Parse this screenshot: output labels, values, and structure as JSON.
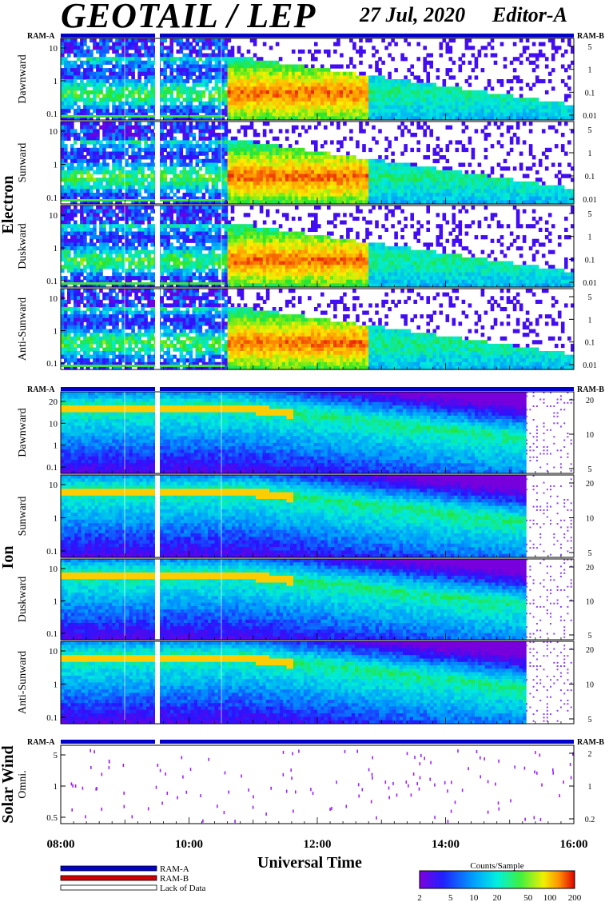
{
  "header": {
    "title": "GEOTAIL / LEP",
    "date": "27 Jul, 2020",
    "editor": "Editor-A"
  },
  "ram_labels": {
    "a": "RAM-A",
    "b": "RAM-B"
  },
  "group_labels": {
    "electron": "Electron",
    "ion": "Ion",
    "solar_wind": "Solar Wind"
  },
  "x_axis": {
    "title": "Universal Time",
    "ticks": [
      "08:00",
      "10:00",
      "12:00",
      "14:00",
      "16:00"
    ]
  },
  "legend": {
    "items": [
      {
        "label": "RAM-A",
        "color": "#0000c8"
      },
      {
        "label": "RAM-B",
        "color": "#d00000"
      },
      {
        "label": "Lack of Data",
        "color": "#ffffff"
      }
    ]
  },
  "colorbar": {
    "title": "Counts/Sample",
    "ticks": [
      "2",
      "5",
      "10",
      "20",
      "50",
      "100",
      "200"
    ]
  },
  "chart_data": {
    "type": "heatmap",
    "x_range": [
      "08:00",
      "16:00"
    ],
    "panels": [
      {
        "group": "Electron",
        "label": "Dawnward",
        "left_ticks": [
          "10",
          "1",
          "0.1"
        ],
        "right_ticks": [
          "5",
          "1",
          "0.1",
          "0.01"
        ]
      },
      {
        "group": "Electron",
        "label": "Sunward",
        "left_ticks": [
          "10",
          "1",
          "0.1"
        ],
        "right_ticks": [
          "5",
          "1",
          "0.1",
          "0.01"
        ]
      },
      {
        "group": "Electron",
        "label": "Duskward",
        "left_ticks": [
          "10",
          "1",
          "0.1"
        ],
        "right_ticks": [
          "5",
          "1",
          "0.1",
          "0.01"
        ]
      },
      {
        "group": "Electron",
        "label": "Anti-Sunward",
        "left_ticks": [
          "10",
          "1",
          "0.1"
        ],
        "right_ticks": [
          "5",
          "1",
          "0.1",
          "0.01"
        ]
      },
      {
        "group": "Ion",
        "label": "Dawnward",
        "left_ticks": [
          "20",
          "10",
          "1",
          "0.1"
        ],
        "right_ticks": [
          "20",
          "10",
          "5"
        ]
      },
      {
        "group": "Ion",
        "label": "Sunward",
        "left_ticks": [
          "10",
          "1",
          "0.1"
        ],
        "right_ticks": [
          "20",
          "10",
          "5"
        ]
      },
      {
        "group": "Ion",
        "label": "Duskward",
        "left_ticks": [
          "10",
          "1",
          "0.1"
        ],
        "right_ticks": [
          "20",
          "10",
          "5"
        ]
      },
      {
        "group": "Ion",
        "label": "Anti-Sunward",
        "left_ticks": [
          "10",
          "1",
          "0.1"
        ],
        "right_ticks": [
          "20",
          "10",
          "5"
        ]
      },
      {
        "group": "Solar Wind",
        "label": "Omni.",
        "left_ticks": [
          "5",
          "1",
          "0.5"
        ],
        "right_ticks": [
          "2",
          "1",
          "0.2"
        ]
      }
    ]
  }
}
